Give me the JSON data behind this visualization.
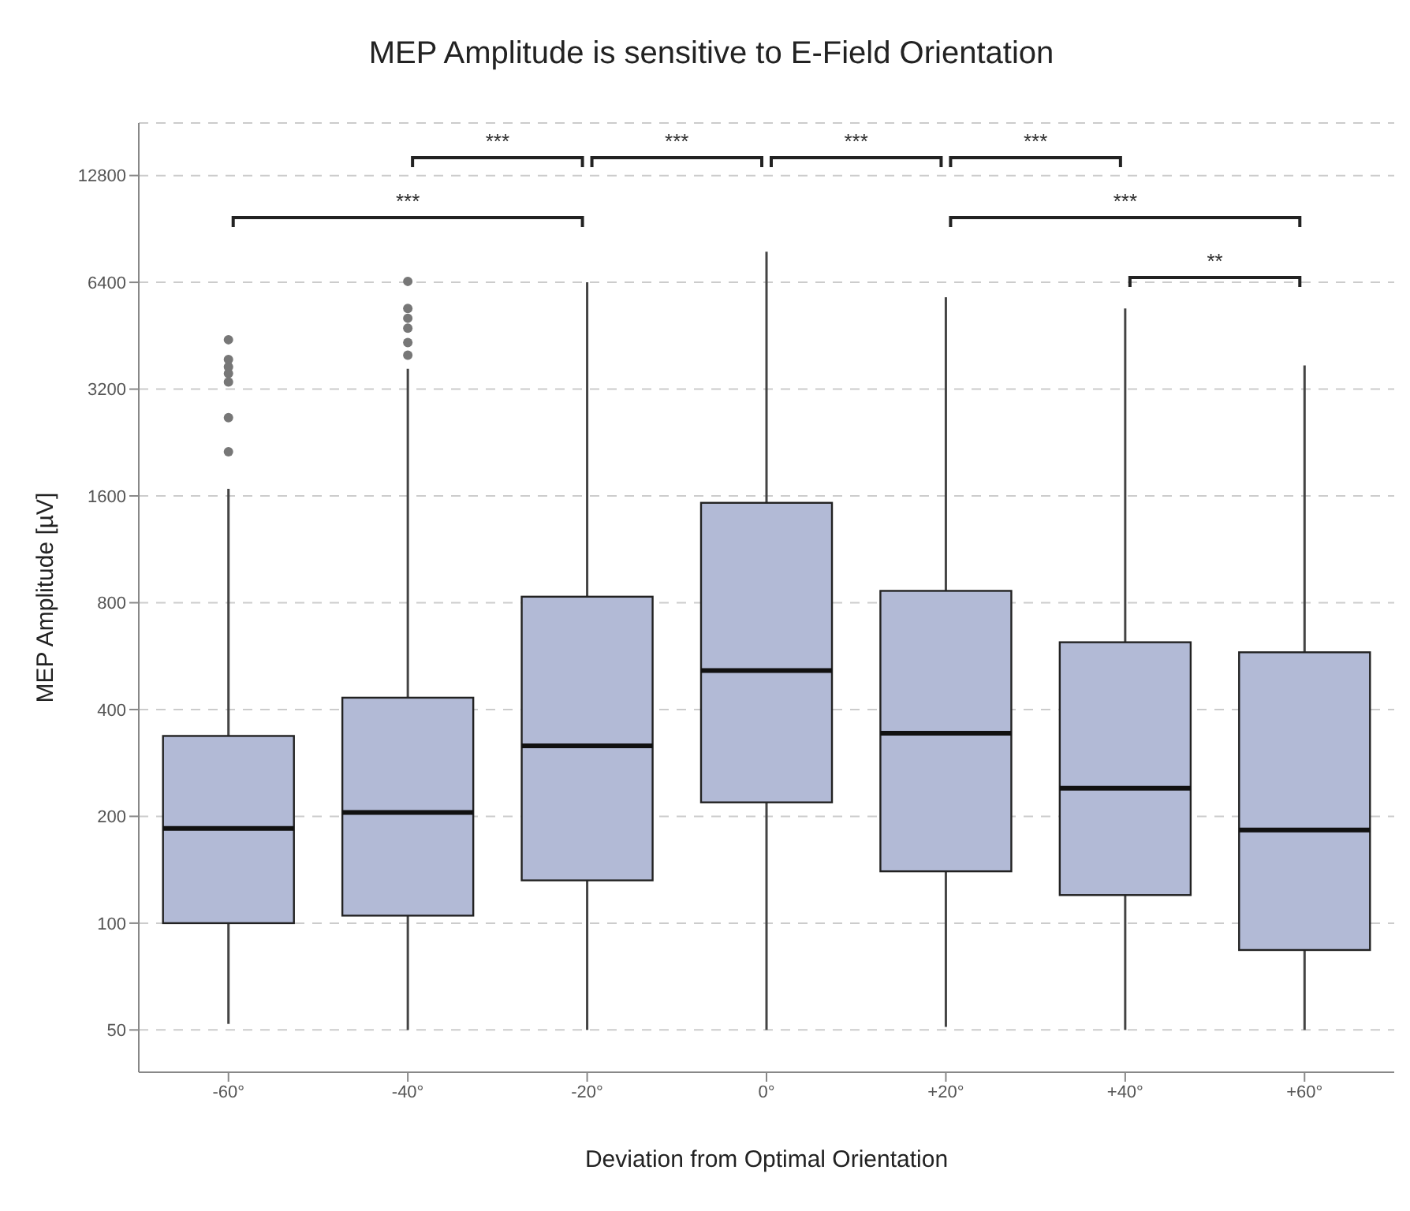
{
  "chart_data": {
    "type": "box",
    "title": "MEP Amplitude is sensitive to E-Field Orientation",
    "xlabel": "Deviation from Optimal Orientation",
    "ylabel": "MEP Amplitude [µV]",
    "categories": [
      "-60°",
      "-40°",
      "-20°",
      "0°",
      "+20°",
      "+40°",
      "+60°"
    ],
    "color": "#b2bad6",
    "log": true,
    "grid": "y",
    "ylim": [
      38,
      18000
    ],
    "yticks": [
      50,
      100,
      200,
      400,
      800,
      1600,
      3200,
      6400,
      12800
    ],
    "boxes": [
      {
        "low": 52,
        "q1": 100,
        "median": 185,
        "q3": 337,
        "high": 1675,
        "outliers": [
          2130,
          2660,
          3350,
          3540,
          3700,
          3880,
          4410
        ]
      },
      {
        "low": 50,
        "q1": 105,
        "median": 205,
        "q3": 432,
        "high": 3650,
        "outliers": [
          3990,
          4330,
          4750,
          5070,
          5400,
          6440
        ]
      },
      {
        "low": 50,
        "q1": 132,
        "median": 316,
        "q3": 832,
        "high": 6400
      },
      {
        "low": 50,
        "q1": 219,
        "median": 515,
        "q3": 1530,
        "high": 7810
      },
      {
        "low": 51,
        "q1": 140,
        "median": 343,
        "q3": 864,
        "high": 5810
      },
      {
        "low": 50,
        "q1": 120,
        "median": 240,
        "q3": 619,
        "high": 5400
      },
      {
        "low": 50,
        "q1": 84,
        "median": 183,
        "q3": 580,
        "high": 3730
      }
    ],
    "annotations": [
      "***",
      "***",
      "***",
      "***",
      "***",
      "***",
      "**"
    ]
  }
}
